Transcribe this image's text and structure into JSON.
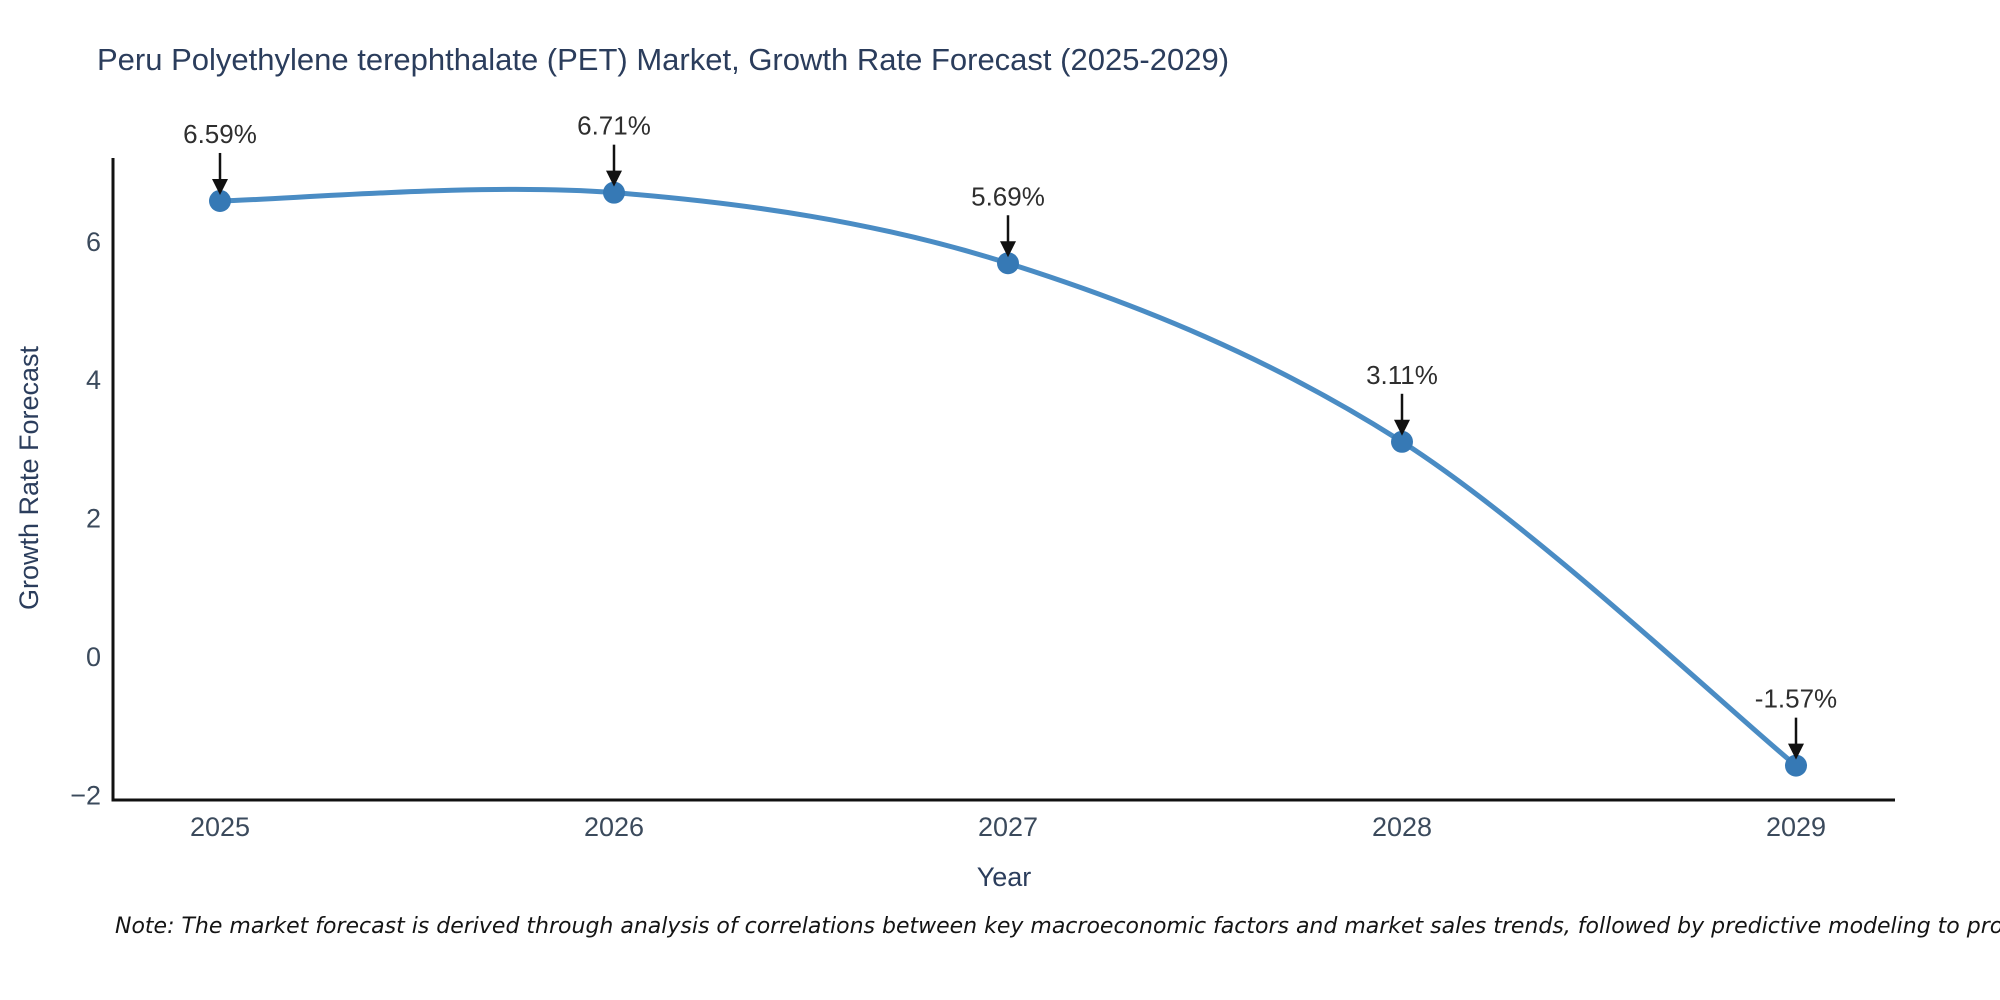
{
  "title": "Peru Polyethylene terephthalate (PET) Market, Growth Rate Forecast (2025-2029)",
  "note": "Note: The market forecast is derived through analysis of correlations between key macroeconomic factors and market sales trends, followed by predictive modeling to project future sales",
  "chart_data": {
    "type": "line",
    "title": "Peru Polyethylene terephthalate (PET) Market, Growth Rate Forecast (2025-2029)",
    "xlabel": "Year",
    "ylabel": "Growth Rate Forecast",
    "categories": [
      "2025",
      "2026",
      "2027",
      "2028",
      "2029"
    ],
    "values": [
      6.59,
      6.71,
      5.69,
      3.11,
      -1.57
    ],
    "point_labels": [
      "6.59%",
      "6.71%",
      "5.69%",
      "3.11%",
      "-1.57%"
    ],
    "yticks": [
      -2,
      0,
      2,
      4,
      6
    ],
    "ytick_labels": [
      "−2",
      "0",
      "2",
      "4",
      "6"
    ],
    "ylim": [
      -2.1,
      7.2
    ],
    "grid": false,
    "line_shape": "spline",
    "legend": "none",
    "colors": {
      "line": "#4a8cc4",
      "marker": "#3679b5",
      "axis": "#111111",
      "annotation": "#111111",
      "title_text": "#2b3d5c",
      "tick_text": "#3b4a5c",
      "background": "#ffffff"
    }
  }
}
